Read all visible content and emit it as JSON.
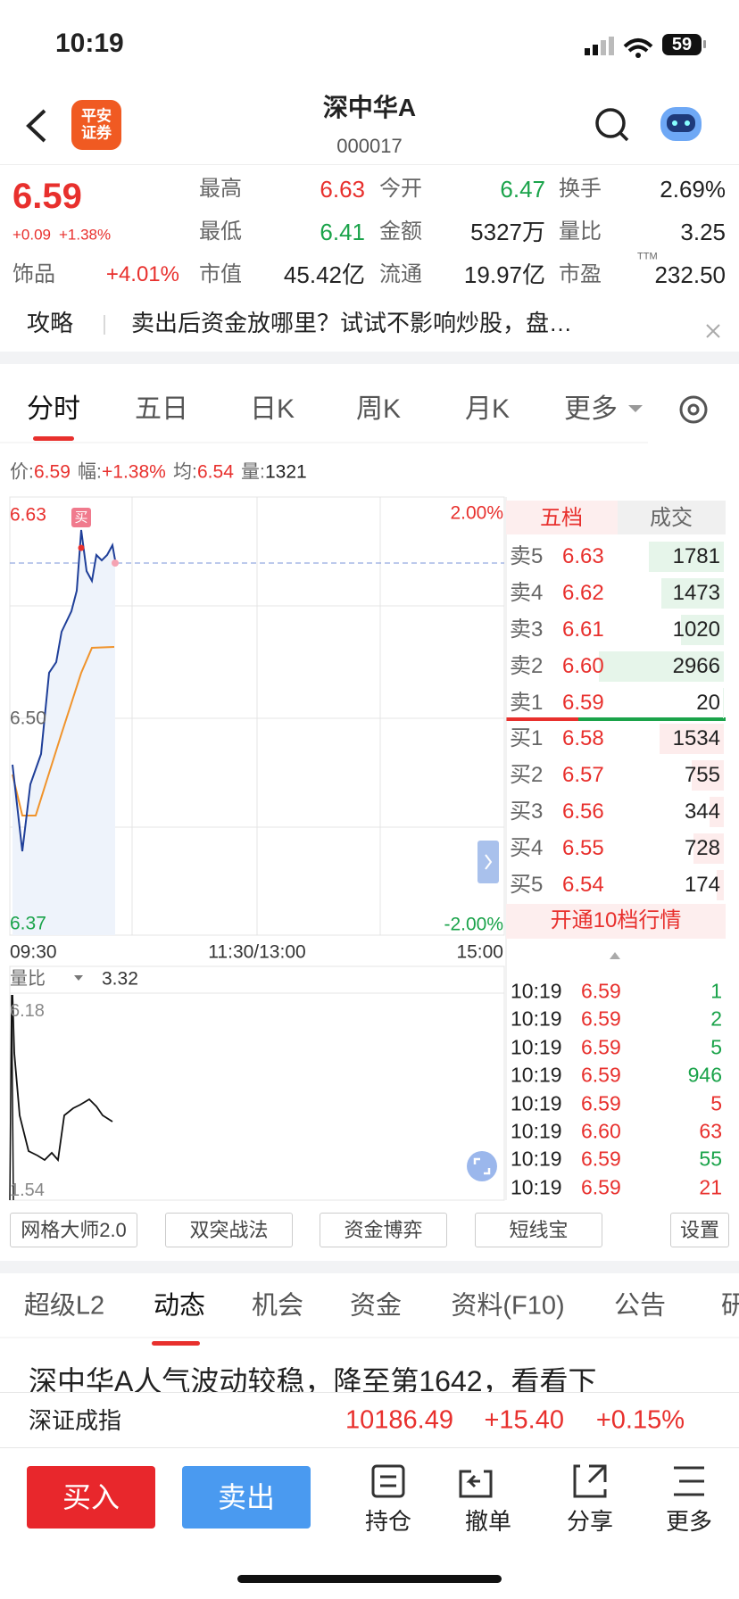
{
  "status_bar": {
    "time": "10:19",
    "battery": "59"
  },
  "header": {
    "logo": "平安证券",
    "title": "深中华A",
    "code": "000017"
  },
  "quote": {
    "price": "6.59",
    "change": "+0.09",
    "change_pct": "+1.38%",
    "sector": "饰品",
    "sector_pct": "+4.01%",
    "stats": [
      {
        "label": "最高",
        "value": "6.63",
        "color": "#e8302d"
      },
      {
        "label": "今开",
        "value": "6.47",
        "color": "#1aa34a"
      },
      {
        "label": "换手",
        "value": "2.69%"
      },
      {
        "label": "最低",
        "value": "6.41",
        "color": "#1aa34a"
      },
      {
        "label": "金额",
        "value": "5327万"
      },
      {
        "label": "量比",
        "value": "3.25"
      },
      {
        "label": "市值",
        "value": "45.42亿"
      },
      {
        "label": "流通",
        "value": "19.97亿"
      },
      {
        "label": "市盈",
        "label_sup": "TTM",
        "value": "232.50"
      }
    ]
  },
  "banner": {
    "tag": "攻略",
    "text": "卖出后资金放哪里？试试不影响炒股，盘…"
  },
  "chart_tabs": [
    "分时",
    "五日",
    "日K",
    "周K",
    "月K",
    "更多"
  ],
  "info": [
    {
      "label": "价:",
      "value": "6.59",
      "color": "#e8302d"
    },
    {
      "label": "幅:",
      "value": "+1.38%",
      "color": "#e8302d"
    },
    {
      "label": "均:",
      "value": "6.54",
      "color": "#e8302d"
    },
    {
      "label": "量:",
      "value": "1321"
    }
  ],
  "price_chart": {
    "high": "6.63",
    "mid": "6.50",
    "low": "6.37",
    "high_pct": "2.00%",
    "low_pct": "-2.00%",
    "marker": "买",
    "times": [
      "09:30",
      "11:30/13:00",
      "15:00"
    ]
  },
  "ratio_panel": {
    "label": "量比",
    "value": "3.32",
    "max": "6.18",
    "min": "1.54"
  },
  "order_book": {
    "tabs": [
      "五档",
      "成交"
    ],
    "asks": [
      {
        "label": "卖5",
        "price": "6.63",
        "volume": 1781
      },
      {
        "label": "卖4",
        "price": "6.62",
        "volume": 1473
      },
      {
        "label": "卖3",
        "price": "6.61",
        "volume": 1020
      },
      {
        "label": "卖2",
        "price": "6.60",
        "volume": 2966
      },
      {
        "label": "卖1",
        "price": "6.59",
        "volume": 20
      }
    ],
    "bids": [
      {
        "label": "买1",
        "price": "6.58",
        "volume": 1534
      },
      {
        "label": "买2",
        "price": "6.57",
        "volume": 755
      },
      {
        "label": "买3",
        "price": "6.56",
        "volume": 344
      },
      {
        "label": "买4",
        "price": "6.55",
        "volume": 728
      },
      {
        "label": "买5",
        "price": "6.54",
        "volume": 174
      }
    ],
    "button": "开通10档行情"
  },
  "trades": [
    {
      "time": "10:19",
      "price": "6.59",
      "volume": "1",
      "color": "#1aa34a"
    },
    {
      "time": "10:19",
      "price": "6.59",
      "volume": "2",
      "color": "#1aa34a"
    },
    {
      "time": "10:19",
      "price": "6.59",
      "volume": "5",
      "color": "#1aa34a"
    },
    {
      "time": "10:19",
      "price": "6.59",
      "volume": "946",
      "color": "#1aa34a"
    },
    {
      "time": "10:19",
      "price": "6.59",
      "volume": "5",
      "color": "#e8302d"
    },
    {
      "time": "10:19",
      "price": "6.60",
      "volume": "63",
      "color": "#e8302d"
    },
    {
      "time": "10:19",
      "price": "6.59",
      "volume": "55",
      "color": "#1aa34a"
    },
    {
      "time": "10:19",
      "price": "6.59",
      "volume": "21",
      "color": "#e8302d"
    }
  ],
  "tools": [
    "网格大师2.0",
    "双突战法",
    "资金博弈",
    "短线宝",
    "设置"
  ],
  "news_tabs": [
    "超级L2",
    "动态",
    "机会",
    "资金",
    "资料(F10)",
    "公告",
    "研"
  ],
  "headline": "深中华A人气波动较稳，降至第1642，看看下",
  "index": {
    "name": "深证成指",
    "value": "10186.49",
    "change": "+15.40",
    "pct": "+0.15%"
  },
  "actions": {
    "buy": "买入",
    "sell": "卖出",
    "items": [
      "持仓",
      "撤单",
      "分享",
      "更多"
    ]
  }
}
